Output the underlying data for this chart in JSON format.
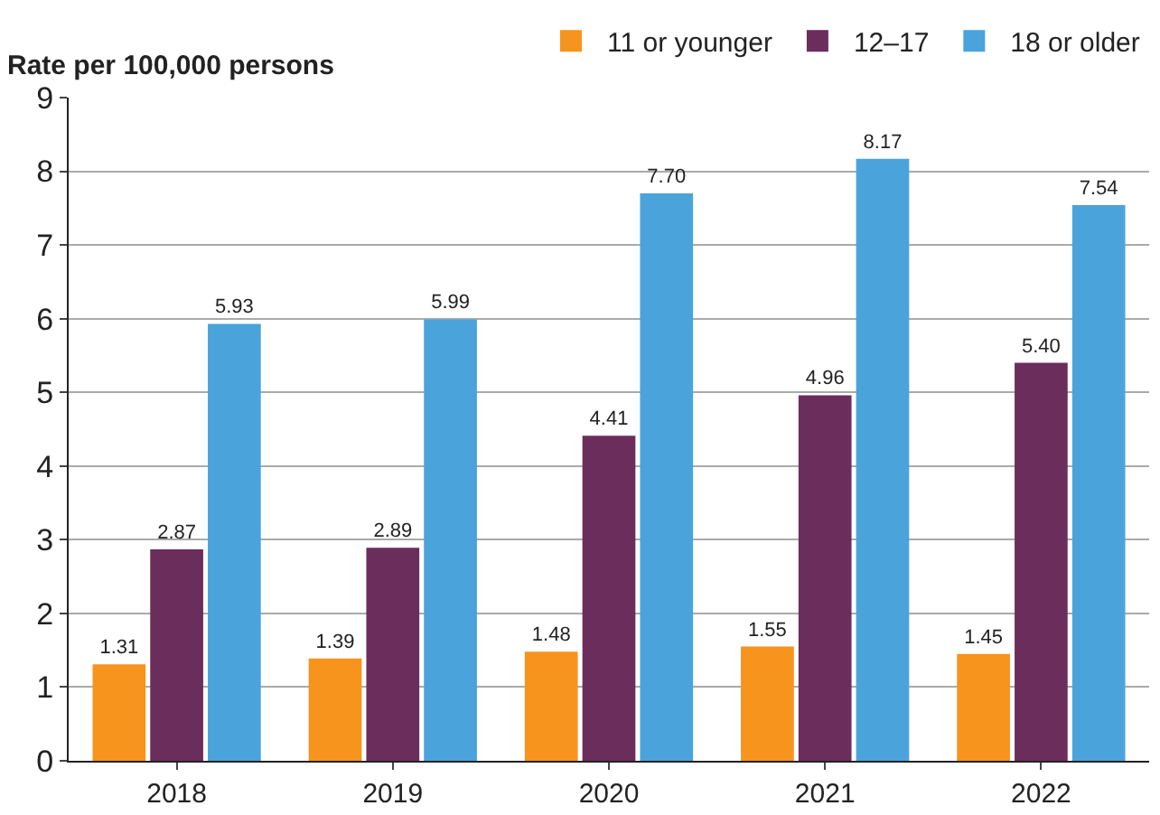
{
  "chart_data": {
    "type": "bar",
    "ylabel": "Rate per 100,000 persons",
    "categories": [
      "2018",
      "2019",
      "2020",
      "2021",
      "2022"
    ],
    "series": [
      {
        "name": "11 or younger",
        "color": "#f7941d",
        "values": [
          1.31,
          1.39,
          1.48,
          1.55,
          1.45
        ]
      },
      {
        "name": "12–17",
        "color": "#6b2d5c",
        "values": [
          2.87,
          2.89,
          4.41,
          4.96,
          5.4
        ]
      },
      {
        "name": "18 or older",
        "color": "#4ba3dc",
        "values": [
          5.93,
          5.99,
          7.7,
          8.17,
          7.54
        ]
      }
    ],
    "value_labels": [
      [
        "1.31",
        "1.39",
        "1.48",
        "1.55",
        "1.45"
      ],
      [
        "2.87",
        "2.89",
        "4.41",
        "4.96",
        "5.40"
      ],
      [
        "5.93",
        "5.99",
        "7.70",
        "8.17",
        "7.54"
      ]
    ],
    "ylim": [
      0,
      9
    ],
    "yticks": [
      0,
      1,
      2,
      3,
      4,
      5,
      6,
      7,
      8,
      9
    ],
    "grid": "y",
    "legend": "top right"
  }
}
